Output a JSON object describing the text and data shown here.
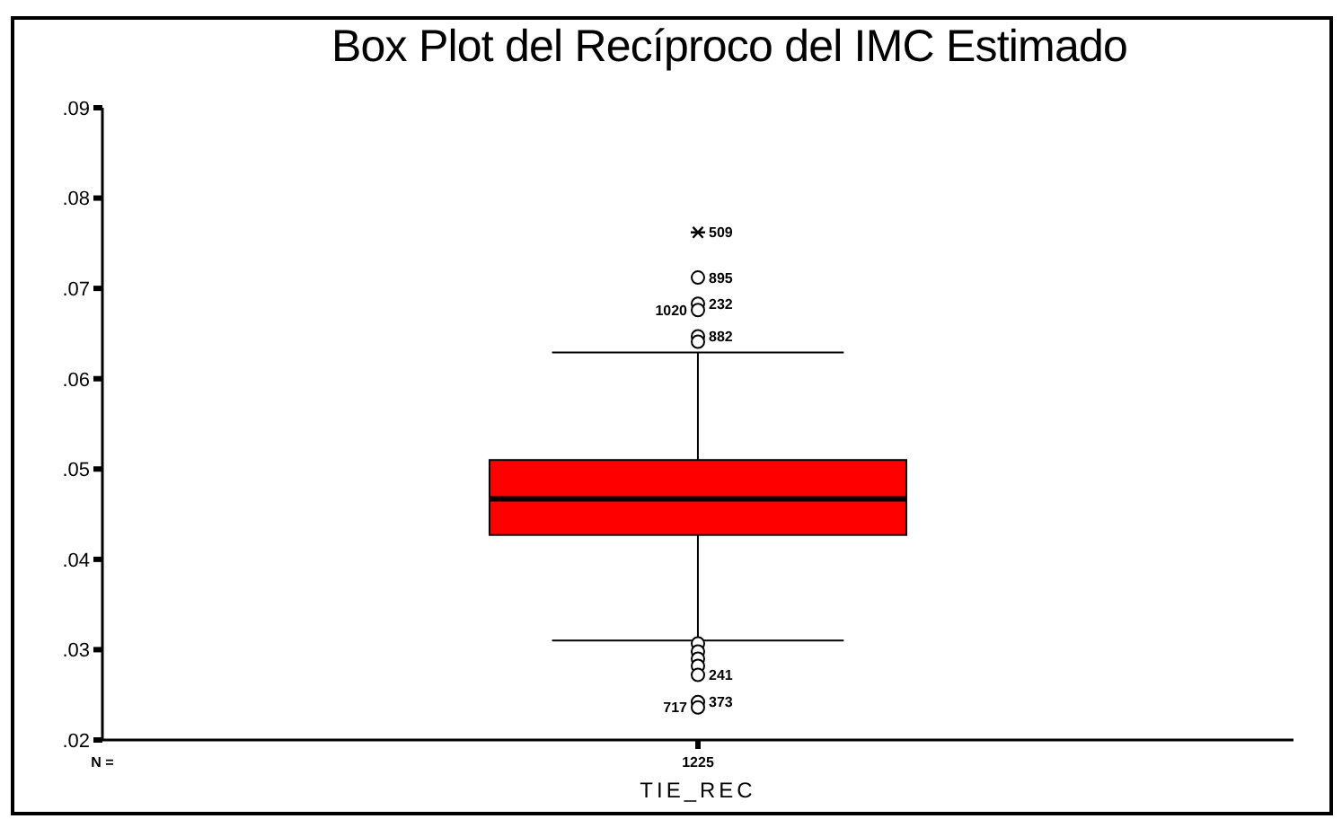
{
  "chart_data": {
    "type": "box",
    "title": "Box Plot del Recíproco del IMC Estimado",
    "categories": [
      "TIE_REC"
    ],
    "series": [
      {
        "type": "box",
        "color": "#ff0000",
        "boxes": [
          {
            "low": 0.031,
            "q1": 0.0427,
            "median": 0.0467,
            "q3": 0.051,
            "high": 0.0629
          }
        ]
      },
      {
        "type": "scatter",
        "marker": "circle",
        "color": "#000000",
        "x": [
          "TIE_REC",
          "TIE_REC",
          "TIE_REC",
          "TIE_REC",
          "TIE_REC",
          "TIE_REC",
          "TIE_REC",
          "TIE_REC",
          "TIE_REC",
          "TIE_REC",
          "TIE_REC",
          "TIE_REC"
        ],
        "values": [
          0.0712,
          0.0683,
          0.0676,
          0.0647,
          0.0641,
          0.0307,
          0.0298,
          0.029,
          0.0282,
          0.0272,
          0.0242,
          0.0236
        ]
      },
      {
        "type": "scatter",
        "marker": "cross",
        "color": "#000000",
        "x": [
          "TIE_REC"
        ],
        "values": [
          0.0762
        ]
      }
    ],
    "ylim": [
      0.02,
      0.09
    ],
    "yticks": [
      {
        "value": 0.02,
        "label": ".02"
      },
      {
        "value": 0.03,
        "label": ".03"
      },
      {
        "value": 0.04,
        "label": ".04"
      },
      {
        "value": 0.05,
        "label": ".05"
      },
      {
        "value": 0.06,
        "label": ".06"
      },
      {
        "value": 0.07,
        "label": ".07"
      },
      {
        "value": 0.08,
        "label": ".08"
      },
      {
        "value": 0.09,
        "label": ".09"
      }
    ],
    "annotations": [
      "N =",
      "1225",
      {
        "text": "509",
        "x": "TIE_REC",
        "y": 0.0762
      },
      {
        "text": "895",
        "x": "TIE_REC",
        "y": 0.0712
      },
      {
        "text": "232",
        "x": "TIE_REC",
        "y": 0.0683
      },
      {
        "text": "1020",
        "x": "TIE_REC",
        "y": 0.0676
      },
      {
        "text": "882",
        "x": "TIE_REC",
        "y": 0.0647
      },
      {
        "text": "241",
        "x": "TIE_REC",
        "y": 0.0272
      },
      {
        "text": "373",
        "x": "TIE_REC",
        "y": 0.0242
      },
      {
        "text": "717",
        "x": "TIE_REC",
        "y": 0.0236
      }
    ]
  }
}
